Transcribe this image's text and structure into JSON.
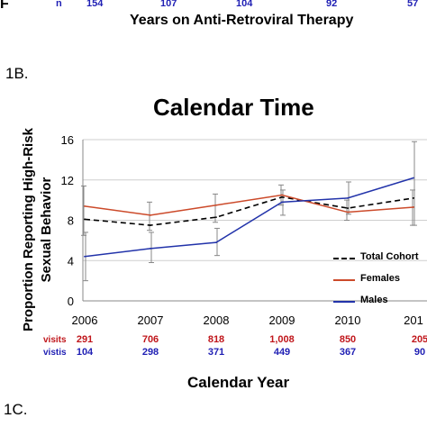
{
  "top_strip": {
    "left_letter": "F",
    "n_label": "n",
    "n_values": [
      "154",
      "107",
      "104",
      "92",
      "57"
    ],
    "x_label": "Years on Anti-Retroviral Therapy"
  },
  "panel_labels": {
    "b": "1B.",
    "c": "1C."
  },
  "colors": {
    "total": "#000000",
    "females": "#cc4a2a",
    "males": "#2233aa",
    "visits_red": "#c0161b",
    "visits_blue": "#1f1fb4"
  },
  "chart_data": {
    "type": "line",
    "title": "Calendar Time",
    "xlabel": "Calendar  Year",
    "ylabel_lines": [
      "Proportion Reporting High-Risk",
      "Sexual Behavior"
    ],
    "categories": [
      "2006",
      "2007",
      "2008",
      "2009",
      "2010",
      "201"
    ],
    "ylim": [
      0,
      16
    ],
    "y_ticks": [
      0,
      4,
      8,
      12,
      16
    ],
    "series": [
      {
        "name": "Total Cohort",
        "style": "dashed",
        "values": [
          8.1,
          7.5,
          8.3,
          10.3,
          9.2,
          10.2
        ]
      },
      {
        "name": "Females",
        "style": "solid",
        "values": [
          9.4,
          8.5,
          9.5,
          10.5,
          8.8,
          9.3
        ],
        "error_low": [
          6.5,
          7.0,
          7.8,
          9.5,
          8.0,
          7.5
        ],
        "error_high": [
          11.4,
          9.8,
          10.6,
          11.5,
          10.0,
          11.0
        ]
      },
      {
        "name": "Males",
        "style": "solid",
        "values": [
          4.4,
          5.2,
          5.8,
          9.8,
          10.2,
          12.2
        ],
        "error_low": [
          2.0,
          3.8,
          4.5,
          8.5,
          8.6,
          7.5
        ],
        "error_high": [
          6.8,
          6.8,
          7.2,
          11.0,
          11.8,
          15.8
        ]
      }
    ],
    "legend_position": "right",
    "grid": "horizontal",
    "visit_rows": [
      {
        "label": "visits",
        "color": "red",
        "values": [
          "291",
          "706",
          "818",
          "1,008",
          "850",
          "205"
        ]
      },
      {
        "label": "vistis",
        "color": "blue",
        "values": [
          "104",
          "298",
          "371",
          "449",
          "367",
          "90"
        ]
      }
    ]
  }
}
